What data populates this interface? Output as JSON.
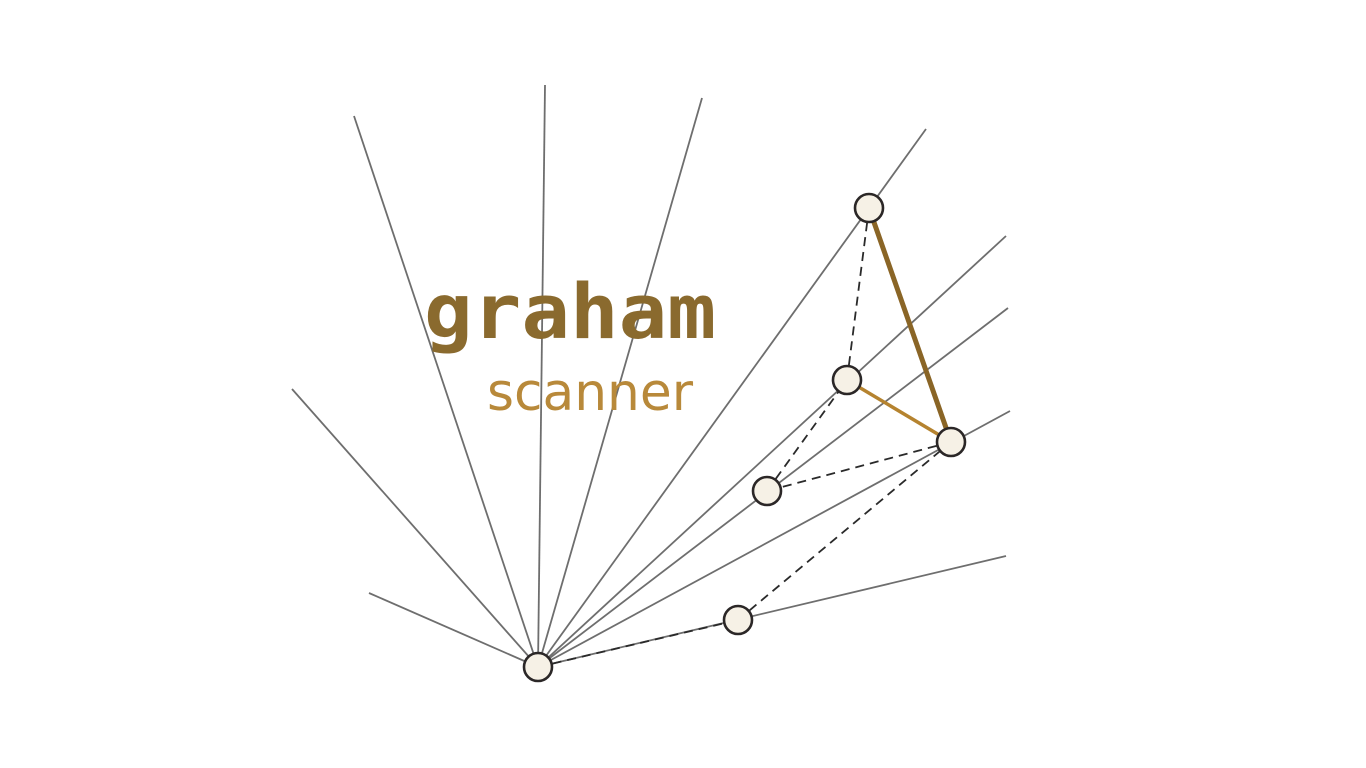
{
  "logo": {
    "word_primary": "graham",
    "word_secondary": "scanner"
  },
  "colors": {
    "background": "#ffffff",
    "ray": "#6e6e6e",
    "dashed_edge": "#2a2a2a",
    "hull_edge_dark": "#8a6526",
    "hull_edge_light": "#b5832f",
    "title_primary": "#8a6a2e",
    "title_secondary": "#b8893a",
    "point_fill": "#f6f1e6",
    "point_stroke": "#2b2727"
  }
}
